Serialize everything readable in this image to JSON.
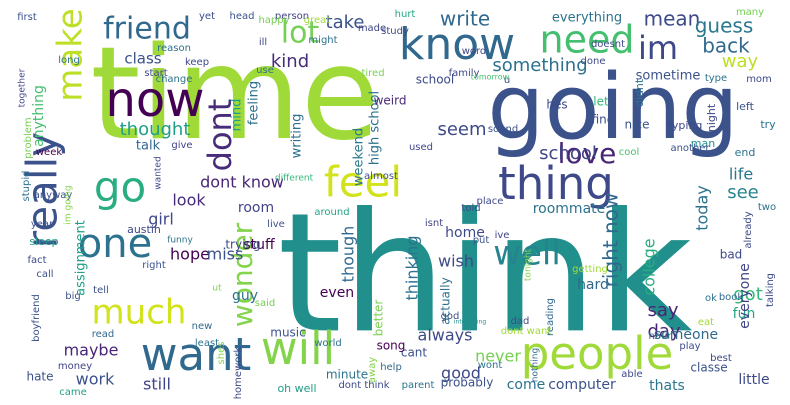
{
  "words": [
    {
      "t": "think",
      "c": "#21908d"
    },
    {
      "t": "time",
      "c": "#a0da39"
    },
    {
      "t": "going",
      "c": "#3b528b"
    },
    {
      "t": "know",
      "c": "#31688e"
    },
    {
      "t": "people",
      "c": "#a0da39"
    },
    {
      "t": "will",
      "c": "#84d44b"
    },
    {
      "t": "want",
      "c": "#31688e"
    },
    {
      "t": "really",
      "c": "#3b528b"
    },
    {
      "t": "make",
      "c": "#bddf26"
    },
    {
      "t": "now",
      "c": "#440154"
    },
    {
      "t": "one",
      "c": "#2c728e"
    },
    {
      "t": "thing",
      "c": "#3e4989"
    },
    {
      "t": "feel",
      "c": "#d2e21b"
    },
    {
      "t": "go",
      "c": "#28ae80"
    },
    {
      "t": "need",
      "c": "#44bf70"
    },
    {
      "t": "im",
      "c": "#3e4989"
    },
    {
      "t": "much",
      "c": "#d2e21b"
    },
    {
      "t": "friend",
      "c": "#31688e"
    },
    {
      "t": "lot",
      "c": "#75d054"
    },
    {
      "t": "dont",
      "c": "#472c7a"
    },
    {
      "t": "wonder",
      "c": "#84d44b"
    },
    {
      "t": "well",
      "c": "#25848e"
    },
    {
      "t": "love",
      "c": "#482576"
    },
    {
      "t": "mean",
      "c": "#3e4989"
    },
    {
      "t": "write",
      "c": "#31688e"
    },
    {
      "t": "guess",
      "c": "#2a788e"
    },
    {
      "t": "back",
      "c": "#31688e"
    },
    {
      "t": "way",
      "c": "#bddf26"
    },
    {
      "t": "something",
      "c": "#2c728e"
    },
    {
      "t": "thought",
      "c": "#1f9e89"
    },
    {
      "t": "kind",
      "c": "#472c7a"
    },
    {
      "t": "class",
      "c": "#3b528b"
    },
    {
      "t": "take",
      "c": "#3b528b"
    },
    {
      "t": "school",
      "c": "#414487"
    },
    {
      "t": "seem",
      "c": "#3e4989"
    },
    {
      "t": "dont know",
      "c": "#482576"
    },
    {
      "t": "look",
      "c": "#472c7a"
    },
    {
      "t": "girl",
      "c": "#3e4989"
    },
    {
      "t": "hope",
      "c": "#440154"
    },
    {
      "t": "miss",
      "c": "#3b528b"
    },
    {
      "t": "thinking",
      "c": "#2c728e"
    },
    {
      "t": "though",
      "c": "#31688e"
    },
    {
      "t": "wish",
      "c": "#3e4989"
    },
    {
      "t": "right now",
      "c": "#31688e"
    },
    {
      "t": "college",
      "c": "#28ae80"
    },
    {
      "t": "today",
      "c": "#2c728e"
    },
    {
      "t": "life",
      "c": "#2a788e"
    },
    {
      "t": "see",
      "c": "#25848e"
    },
    {
      "t": "say",
      "c": "#482576"
    },
    {
      "t": "day",
      "c": "#482576"
    },
    {
      "t": "got",
      "c": "#35b779"
    },
    {
      "t": "maybe",
      "c": "#482576"
    },
    {
      "t": "work",
      "c": "#3b528b"
    },
    {
      "t": "still",
      "c": "#414487"
    },
    {
      "t": "always",
      "c": "#3e4989"
    },
    {
      "t": "good",
      "c": "#3e4989"
    },
    {
      "t": "fun",
      "c": "#21a585"
    },
    {
      "t": "little",
      "c": "#3e4989"
    },
    {
      "t": "thats",
      "c": "#2a788e"
    },
    {
      "t": "come",
      "c": "#2c728e"
    },
    {
      "t": "computer",
      "c": "#3b528b"
    },
    {
      "t": "never",
      "c": "#75d054"
    },
    {
      "t": "hard",
      "c": "#31688e"
    },
    {
      "t": "even",
      "c": "#440154"
    },
    {
      "t": "room",
      "c": "#414487"
    },
    {
      "t": "stuff",
      "c": "#440154"
    },
    {
      "t": "guy",
      "c": "#2c728e"
    },
    {
      "t": "roommate",
      "c": "#2c728e"
    },
    {
      "t": "home",
      "c": "#3e4989"
    },
    {
      "t": "someone",
      "c": "#31688e"
    },
    {
      "t": "everyone",
      "c": "#414487"
    },
    {
      "t": "everything",
      "c": "#2c728e"
    },
    {
      "t": "sometime",
      "c": "#3b528b"
    },
    {
      "t": "weekend",
      "c": "#2a788e"
    },
    {
      "t": "high school",
      "c": "#2c728e"
    },
    {
      "t": "writing",
      "c": "#2c728e"
    },
    {
      "t": "mind",
      "c": "#1fa188"
    },
    {
      "t": "feeling",
      "c": "#2c728e"
    },
    {
      "t": "talk",
      "c": "#31688e"
    },
    {
      "t": "assignment",
      "c": "#1fa188"
    },
    {
      "t": "anything",
      "c": "#44bf70"
    },
    {
      "t": "trying",
      "c": "#3e4989"
    },
    {
      "t": "minute",
      "c": "#2c728e"
    },
    {
      "t": "bad",
      "c": "#3e4989"
    },
    {
      "t": "cant",
      "c": "#3b528b"
    },
    {
      "t": "song",
      "c": "#440154"
    },
    {
      "t": "probably",
      "c": "#3b528b"
    },
    {
      "t": "classe",
      "c": "#3b528b"
    },
    {
      "t": "music",
      "c": "#3b528b"
    },
    {
      "t": "hate",
      "c": "#3b528b"
    },
    {
      "t": "better",
      "c": "#7ad151"
    },
    {
      "t": "actually",
      "c": "#2c728e"
    },
    {
      "t": "reading",
      "c": "#31688e"
    },
    {
      "t": "weird",
      "c": "#482576"
    },
    {
      "t": "hes",
      "c": "#3e4989"
    },
    {
      "t": "school",
      "c": "#3e4989"
    },
    {
      "t": "nice",
      "c": "#3b528b"
    },
    {
      "t": "find",
      "c": "#3b528b"
    },
    {
      "t": "let",
      "c": "#35b779"
    },
    {
      "t": "typing",
      "c": "#3e4989"
    },
    {
      "t": "didnt",
      "c": "#2c728e"
    },
    {
      "t": "night",
      "c": "#3e4989"
    },
    {
      "t": "left",
      "c": "#3b528b"
    },
    {
      "t": "try",
      "c": "#2c728e"
    },
    {
      "t": "end",
      "c": "#2c728e"
    },
    {
      "t": "man",
      "c": "#21908d"
    },
    {
      "t": "another",
      "c": "#3b528b"
    },
    {
      "t": "cool",
      "c": "#44bf70"
    },
    {
      "t": "used",
      "c": "#3e4989"
    },
    {
      "t": "sound",
      "c": "#3b528b"
    },
    {
      "t": "give",
      "c": "#414487"
    },
    {
      "t": "week",
      "c": "#440154"
    },
    {
      "t": "problem",
      "c": "#75d054"
    },
    {
      "t": "stupid",
      "c": "#2c728e"
    },
    {
      "t": "anyway",
      "c": "#3b528b"
    },
    {
      "t": "year",
      "c": "#3b528b"
    },
    {
      "t": "sleep",
      "c": "#1f9e89"
    },
    {
      "t": "fact",
      "c": "#3e4989"
    },
    {
      "t": "call",
      "c": "#3b528b"
    },
    {
      "t": "tell",
      "c": "#3b528b"
    },
    {
      "t": "big",
      "c": "#3b528b"
    },
    {
      "t": "boyfriend",
      "c": "#3b528b"
    },
    {
      "t": "money",
      "c": "#414487"
    },
    {
      "t": "came",
      "c": "#1f9e89"
    },
    {
      "t": "austin",
      "c": "#3e4989"
    },
    {
      "t": "right",
      "c": "#3b528b"
    },
    {
      "t": "funny",
      "c": "#2c728e"
    },
    {
      "t": "wanted",
      "c": "#3e4989"
    },
    {
      "t": "live",
      "c": "#3b528b"
    },
    {
      "t": "different",
      "c": "#35b779"
    },
    {
      "t": "around",
      "c": "#21a585"
    },
    {
      "t": "almost",
      "c": "#3b528b"
    },
    {
      "t": "isnt",
      "c": "#414487"
    },
    {
      "t": "told",
      "c": "#3e4989"
    },
    {
      "t": "place",
      "c": "#3e4989"
    },
    {
      "t": "put",
      "c": "#3b528b"
    },
    {
      "t": "ive",
      "c": "#414487"
    },
    {
      "t": "getting",
      "c": "#a0da39"
    },
    {
      "t": "already",
      "c": "#3e4989"
    },
    {
      "t": "two",
      "c": "#2c728e"
    },
    {
      "t": "talking",
      "c": "#3e4989"
    },
    {
      "t": "book",
      "c": "#31688e"
    },
    {
      "t": "ok",
      "c": "#2c728e"
    },
    {
      "t": "play",
      "c": "#3e4989"
    },
    {
      "t": "eat",
      "c": "#a0da39"
    },
    {
      "t": "hour",
      "c": "#2c728e"
    },
    {
      "t": "best",
      "c": "#3e4989"
    },
    {
      "t": "dont want",
      "c": "#a0da39"
    },
    {
      "t": "dad",
      "c": "#3e4989"
    },
    {
      "t": "god",
      "c": "#3b528b"
    },
    {
      "t": "parent",
      "c": "#2c728e"
    },
    {
      "t": "help",
      "c": "#31688e"
    },
    {
      "t": "away",
      "c": "#84d44b"
    },
    {
      "t": "wont",
      "c": "#2c728e"
    },
    {
      "t": "able",
      "c": "#3e4989"
    },
    {
      "t": "oh well",
      "c": "#1f9e89"
    },
    {
      "t": "dont think",
      "c": "#3e4989"
    },
    {
      "t": "world",
      "c": "#2c728e"
    },
    {
      "t": "said",
      "c": "#75d054"
    },
    {
      "t": "shes",
      "c": "#84d44b"
    },
    {
      "t": "homework",
      "c": "#3e4989"
    },
    {
      "t": "new",
      "c": "#31688e"
    },
    {
      "t": "least",
      "c": "#2c728e"
    },
    {
      "t": "read",
      "c": "#31688e"
    },
    {
      "t": "ut",
      "c": "#84d44b"
    },
    {
      "t": "first",
      "c": "#3b528b"
    },
    {
      "t": "together",
      "c": "#414487"
    },
    {
      "t": "yet",
      "c": "#3e4989"
    },
    {
      "t": "head",
      "c": "#3b528b"
    },
    {
      "t": "person",
      "c": "#414487"
    },
    {
      "t": "happy",
      "c": "#75d054"
    },
    {
      "t": "great",
      "c": "#a0da39"
    },
    {
      "t": "hurt",
      "c": "#21a585"
    },
    {
      "t": "study",
      "c": "#3e4989"
    },
    {
      "t": "doesnt",
      "c": "#3e4989"
    },
    {
      "t": "many",
      "c": "#75d054"
    },
    {
      "t": "ill",
      "c": "#3e4989"
    },
    {
      "t": "use",
      "c": "#2c728e"
    },
    {
      "t": "made",
      "c": "#414487"
    },
    {
      "t": "might",
      "c": "#2c728e"
    },
    {
      "t": "word",
      "c": "#3e4989"
    },
    {
      "t": "done",
      "c": "#3e4989"
    },
    {
      "t": "reason",
      "c": "#2c728e"
    },
    {
      "t": "keep",
      "c": "#3e4989"
    },
    {
      "t": "start",
      "c": "#3e4989"
    },
    {
      "t": "change",
      "c": "#2c728e"
    },
    {
      "t": "tired",
      "c": "#7ad151"
    },
    {
      "t": "family",
      "c": "#3e4989"
    },
    {
      "t": "tomorrow",
      "c": "#44bf70"
    },
    {
      "t": "u",
      "c": "#3e4989"
    },
    {
      "t": "mom",
      "c": "#3e4989"
    },
    {
      "t": "long",
      "c": "#2c728e"
    },
    {
      "t": "interesting",
      "c": "#21908d"
    },
    {
      "t": "im going",
      "c": "#84d44b"
    },
    {
      "t": "tonight",
      "c": "#84d44b"
    },
    {
      "t": "type",
      "c": "#2c728e"
    },
    {
      "t": "nothing",
      "c": "#31688e"
    }
  ]
}
